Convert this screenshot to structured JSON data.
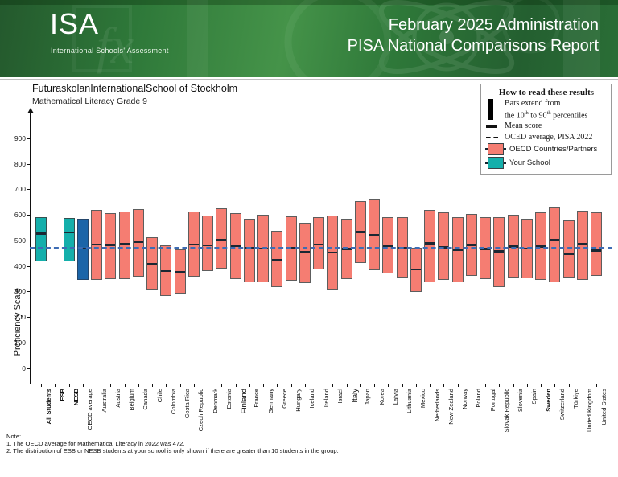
{
  "header": {
    "logo_text": "ISA",
    "logo_subtitle": "International Schools' Assessment",
    "admin_line": "February 2025 Administration",
    "report_line": "PISA National Comparisons Report"
  },
  "titles": {
    "school_name": "FuturaskolanInternationalSchool of Stockholm",
    "subtitle": "Mathematical Literacy Grade 9"
  },
  "legend": {
    "title": "How to read these results",
    "bars_line1": "Bars extend from",
    "bars_line2": {
      "p1": "the 10",
      "sup1": "th",
      "p2": " to 90",
      "sup2": "th",
      "p3": " percentiles"
    },
    "mean_label": "Mean score",
    "oecd_avg_label": "OCED average, PISA 2022",
    "countries_label": "OECD Countries/Partners",
    "school_label": "Your School"
  },
  "notes": {
    "heading": "Note:",
    "line1": "1. The OECD average for Mathematical Literacy in 2022 was 472.",
    "line2": "2. The distribution of ESB or NESB students at your school is only shown if there are greater than 10 students in the group."
  },
  "colors": {
    "school_bar": "#14AFAB",
    "oecd_avg_bar": "#1B65A8",
    "country_bar": "#F57D72",
    "mean_line": "#1B2733",
    "oecd_dashed_line": "#3D6CB4",
    "header_green": "#2E7839"
  },
  "chart_data": {
    "type": "bar",
    "subtype": "percentile-range-bars (10th to 90th percentile, with mean tick)",
    "title": "FuturaskolanInternationalSchool of Stockholm",
    "subtitle": "Mathematical Literacy Grade 9",
    "xlabel": "",
    "ylabel": "Proficiency Scale",
    "ylim": [
      0,
      1000
    ],
    "yticks": [
      0,
      100,
      200,
      300,
      400,
      500,
      600,
      700,
      800,
      900
    ],
    "grid": false,
    "legend_position": "top-right",
    "oecd_average_reference_line": 472,
    "bars": [
      {
        "label": "All Students",
        "group": "school",
        "bold": true,
        "p10": 418,
        "mean": 530,
        "p90": 590
      },
      {
        "label": "ESB",
        "group": "none",
        "bold": true,
        "p10": null,
        "mean": null,
        "p90": null
      },
      {
        "label": "NESB",
        "group": "school",
        "bold": true,
        "p10": 417,
        "mean": 535,
        "p90": 588
      },
      {
        "label": "OECD average",
        "group": "oecd",
        "bold": false,
        "p10": 346,
        "mean": 472,
        "p90": 583
      },
      {
        "label": "Australia",
        "group": "country",
        "p10": 344,
        "mean": 487,
        "p90": 618
      },
      {
        "label": "Austria",
        "group": "country",
        "p10": 349,
        "mean": 486,
        "p90": 606
      },
      {
        "label": "Belgium",
        "group": "country",
        "p10": 347,
        "mean": 491,
        "p90": 613
      },
      {
        "label": "Canada",
        "group": "country",
        "p10": 357,
        "mean": 497,
        "p90": 622
      },
      {
        "label": "Chile",
        "group": "country",
        "p10": 307,
        "mean": 410,
        "p90": 512
      },
      {
        "label": "Colombia",
        "group": "country",
        "p10": 281,
        "mean": 383,
        "p90": 480
      },
      {
        "label": "Costa Rica",
        "group": "country",
        "p10": 291,
        "mean": 380,
        "p90": 465
      },
      {
        "label": "Czech Republic",
        "group": "country",
        "p10": 357,
        "mean": 487,
        "p90": 612
      },
      {
        "label": "Denmark",
        "group": "country",
        "p10": 379,
        "mean": 484,
        "p90": 596
      },
      {
        "label": "Estonia",
        "group": "country",
        "p10": 389,
        "mean": 506,
        "p90": 624
      },
      {
        "label": "Finland",
        "group": "country",
        "big": true,
        "p10": 349,
        "mean": 483,
        "p90": 606
      },
      {
        "label": "France",
        "group": "country",
        "p10": 336,
        "mean": 474,
        "p90": 585
      },
      {
        "label": "Germany",
        "group": "country",
        "p10": 336,
        "mean": 472,
        "p90": 600
      },
      {
        "label": "Greece",
        "group": "country",
        "p10": 318,
        "mean": 428,
        "p90": 538
      },
      {
        "label": "Hungary",
        "group": "country",
        "p10": 341,
        "mean": 473,
        "p90": 593
      },
      {
        "label": "Iceland",
        "group": "country",
        "p10": 333,
        "mean": 459,
        "p90": 569
      },
      {
        "label": "Ireland",
        "group": "country",
        "p10": 386,
        "mean": 488,
        "p90": 590
      },
      {
        "label": "Israel",
        "group": "country",
        "p10": 307,
        "mean": 456,
        "p90": 596
      },
      {
        "label": "Italy",
        "group": "country",
        "big": true,
        "p10": 349,
        "mean": 470,
        "p90": 585
      },
      {
        "label": "Japan",
        "group": "country",
        "p10": 412,
        "mean": 536,
        "p90": 653
      },
      {
        "label": "Korea",
        "group": "country",
        "p10": 383,
        "mean": 525,
        "p90": 660
      },
      {
        "label": "Latvia",
        "group": "country",
        "p10": 370,
        "mean": 483,
        "p90": 590
      },
      {
        "label": "Lithuania",
        "group": "country",
        "p10": 354,
        "mean": 473,
        "p90": 590
      },
      {
        "label": "Mexico",
        "group": "country",
        "p10": 297,
        "mean": 390,
        "p90": 470
      },
      {
        "label": "Netherlands",
        "group": "country",
        "p10": 335,
        "mean": 492,
        "p90": 620
      },
      {
        "label": "New Zealand",
        "group": "country",
        "p10": 344,
        "mean": 477,
        "p90": 611
      },
      {
        "label": "Norway",
        "group": "country",
        "p10": 335,
        "mean": 465,
        "p90": 590
      },
      {
        "label": "Poland",
        "group": "country",
        "p10": 360,
        "mean": 486,
        "p90": 604
      },
      {
        "label": "Portugal",
        "group": "country",
        "p10": 349,
        "mean": 470,
        "p90": 590
      },
      {
        "label": "Slovak Republic",
        "group": "country",
        "p10": 318,
        "mean": 460,
        "p90": 590
      },
      {
        "label": "Slovenia",
        "group": "country",
        "p10": 354,
        "mean": 480,
        "p90": 600
      },
      {
        "label": "Spain",
        "group": "country",
        "p10": 352,
        "mean": 472,
        "p90": 583
      },
      {
        "label": "Sweden",
        "group": "country",
        "bold": true,
        "p10": 344,
        "mean": 480,
        "p90": 608
      },
      {
        "label": "Switzerland",
        "group": "country",
        "p10": 335,
        "mean": 505,
        "p90": 630
      },
      {
        "label": "Türkiye",
        "group": "country",
        "p10": 354,
        "mean": 450,
        "p90": 577
      },
      {
        "label": "United Kingdom",
        "group": "country",
        "p10": 344,
        "mean": 489,
        "p90": 615
      },
      {
        "label": "United States",
        "group": "country",
        "p10": 360,
        "mean": 463,
        "p90": 608
      }
    ]
  }
}
